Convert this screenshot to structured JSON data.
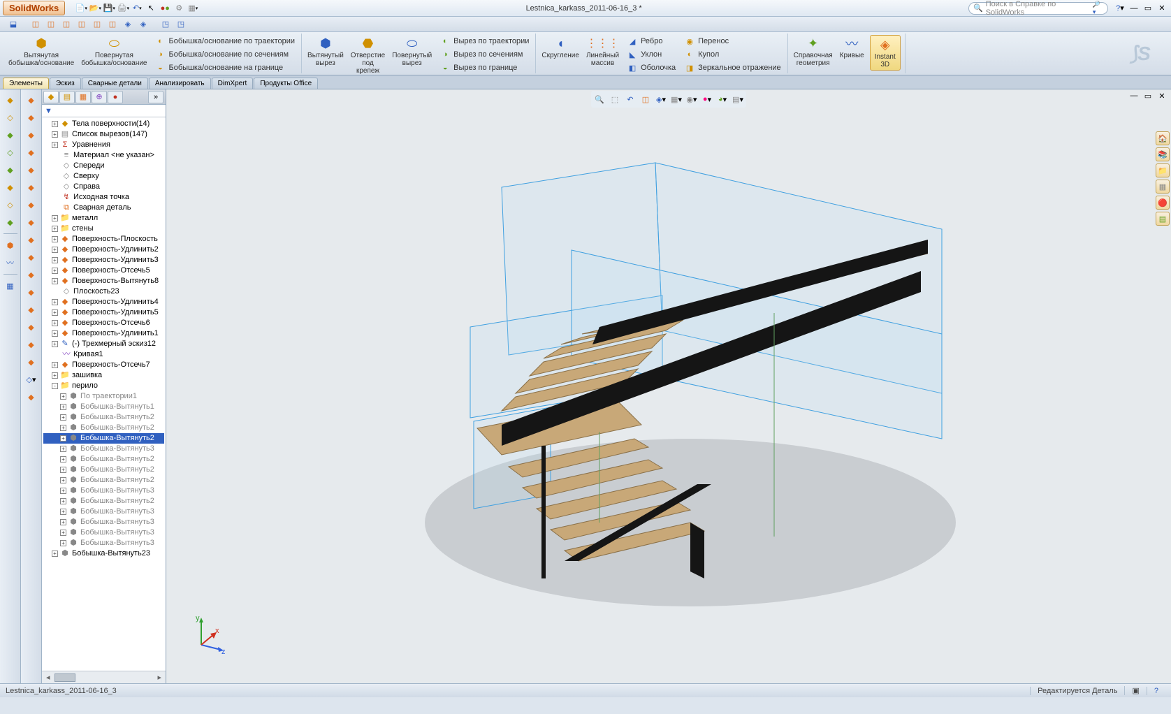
{
  "app": {
    "logo": "SolidWorks",
    "title": "Lestnica_karkass_2011-06-16_3 *",
    "search_placeholder": "Поиск в Справке по SolidWorks"
  },
  "qat": [
    "new",
    "open",
    "save",
    "print",
    "undo",
    "select",
    "rebuild",
    "options",
    "macro"
  ],
  "viewbar_icons": [
    "orient",
    "front",
    "back",
    "left",
    "right",
    "top",
    "bottom",
    "iso",
    "normal",
    "section",
    "hidden",
    "wireframe",
    "shaded",
    "shadow"
  ],
  "ribbon": {
    "g1": {
      "big": [
        {
          "label": "Вытянутая\nбобышка/основание"
        },
        {
          "label": "Повернутая\nбобышка/основание"
        }
      ],
      "small": [
        "Бобышка/основание по траектории",
        "Бобышка/основание по сечениям",
        "Бобышка/основание на границе"
      ]
    },
    "g2": {
      "big": [
        {
          "label": "Вытянутый\nвырез"
        },
        {
          "label": "Отверстие\nпод\nкрепеж"
        },
        {
          "label": "Повернутый\nвырез"
        }
      ],
      "small": [
        "Вырез по траектории",
        "Вырез по сечениям",
        "Вырез по границе"
      ]
    },
    "g3": {
      "big": [
        {
          "label": "Скругление"
        },
        {
          "label": "Линейный\nмассив"
        }
      ],
      "small": [
        "Ребро",
        "Уклон",
        "Оболочка",
        "Перенос",
        "Купол",
        "Зеркальное отражение"
      ]
    },
    "g4": {
      "big": [
        {
          "label": "Справочная\nгеометрия"
        },
        {
          "label": "Кривые"
        },
        {
          "label": "Instant\n3D",
          "instant": true
        }
      ]
    }
  },
  "tabs": [
    "Элементы",
    "Эскиз",
    "Сварные детали",
    "Анализировать",
    "DimXpert",
    "Продукты Office"
  ],
  "active_tab": 0,
  "tree": [
    {
      "lvl": 1,
      "exp": "+",
      "icon": "surf",
      "txt": "Тела поверхности(14)"
    },
    {
      "lvl": 1,
      "exp": "+",
      "icon": "cutlist",
      "txt": "Список вырезов(147)"
    },
    {
      "lvl": 1,
      "exp": "+",
      "icon": "eq",
      "txt": "Уравнения"
    },
    {
      "lvl": 1,
      "exp": "",
      "icon": "mat",
      "txt": "Материал <не указан>"
    },
    {
      "lvl": 1,
      "exp": "",
      "icon": "plane",
      "txt": "Спереди"
    },
    {
      "lvl": 1,
      "exp": "",
      "icon": "plane",
      "txt": "Сверху"
    },
    {
      "lvl": 1,
      "exp": "",
      "icon": "plane",
      "txt": "Справа"
    },
    {
      "lvl": 1,
      "exp": "",
      "icon": "origin",
      "txt": "Исходная точка"
    },
    {
      "lvl": 1,
      "exp": "",
      "icon": "weld",
      "txt": "Сварная деталь"
    },
    {
      "lvl": 1,
      "exp": "+",
      "icon": "folder",
      "txt": "металл"
    },
    {
      "lvl": 1,
      "exp": "+",
      "icon": "folder",
      "txt": "стены"
    },
    {
      "lvl": 1,
      "exp": "+",
      "icon": "surf-f",
      "txt": "Поверхность-Плоскость"
    },
    {
      "lvl": 1,
      "exp": "+",
      "icon": "surf-f",
      "txt": "Поверхность-Удлинить2"
    },
    {
      "lvl": 1,
      "exp": "+",
      "icon": "surf-f",
      "txt": "Поверхность-Удлинить3"
    },
    {
      "lvl": 1,
      "exp": "+",
      "icon": "surf-f",
      "txt": "Поверхность-Отсечь5"
    },
    {
      "lvl": 1,
      "exp": "+",
      "icon": "surf-f",
      "txt": "Поверхность-Вытянуть8"
    },
    {
      "lvl": 1,
      "exp": "",
      "icon": "plane",
      "txt": "Плоскость23"
    },
    {
      "lvl": 1,
      "exp": "+",
      "icon": "surf-f",
      "txt": "Поверхность-Удлинить4"
    },
    {
      "lvl": 1,
      "exp": "+",
      "icon": "surf-f",
      "txt": "Поверхность-Удлинить5"
    },
    {
      "lvl": 1,
      "exp": "+",
      "icon": "surf-f",
      "txt": "Поверхность-Отсечь6"
    },
    {
      "lvl": 1,
      "exp": "+",
      "icon": "surf-f",
      "txt": "Поверхность-Удлинить1"
    },
    {
      "lvl": 1,
      "exp": "+",
      "icon": "sketch3d",
      "txt": "(-) Трехмерный эскиз12"
    },
    {
      "lvl": 1,
      "exp": "",
      "icon": "curve",
      "txt": "Кривая1"
    },
    {
      "lvl": 1,
      "exp": "+",
      "icon": "surf-f",
      "txt": "Поверхность-Отсечь7"
    },
    {
      "lvl": 1,
      "exp": "+",
      "icon": "folder",
      "txt": "зашивка"
    },
    {
      "lvl": 1,
      "exp": "-",
      "icon": "folder",
      "txt": "перило"
    },
    {
      "lvl": 2,
      "exp": "+",
      "icon": "boss",
      "txt": "По траектории1",
      "grey": true
    },
    {
      "lvl": 2,
      "exp": "+",
      "icon": "boss",
      "txt": "Бобышка-Вытянуть1",
      "grey": true
    },
    {
      "lvl": 2,
      "exp": "+",
      "icon": "boss",
      "txt": "Бобышка-Вытянуть2",
      "grey": true
    },
    {
      "lvl": 2,
      "exp": "+",
      "icon": "boss",
      "txt": "Бобышка-Вытянуть2",
      "grey": true
    },
    {
      "lvl": 2,
      "exp": "+",
      "icon": "boss",
      "txt": "Бобышка-Вытянуть2",
      "sel": true
    },
    {
      "lvl": 2,
      "exp": "+",
      "icon": "boss",
      "txt": "Бобышка-Вытянуть3",
      "grey": true
    },
    {
      "lvl": 2,
      "exp": "+",
      "icon": "boss",
      "txt": "Бобышка-Вытянуть2",
      "grey": true
    },
    {
      "lvl": 2,
      "exp": "+",
      "icon": "boss",
      "txt": "Бобышка-Вытянуть2",
      "grey": true
    },
    {
      "lvl": 2,
      "exp": "+",
      "icon": "boss",
      "txt": "Бобышка-Вытянуть2",
      "grey": true
    },
    {
      "lvl": 2,
      "exp": "+",
      "icon": "boss",
      "txt": "Бобышка-Вытянуть3",
      "grey": true
    },
    {
      "lvl": 2,
      "exp": "+",
      "icon": "boss",
      "txt": "Бобышка-Вытянуть2",
      "grey": true
    },
    {
      "lvl": 2,
      "exp": "+",
      "icon": "boss",
      "txt": "Бобышка-Вытянуть3",
      "grey": true
    },
    {
      "lvl": 2,
      "exp": "+",
      "icon": "boss",
      "txt": "Бобышка-Вытянуть3",
      "grey": true
    },
    {
      "lvl": 2,
      "exp": "+",
      "icon": "boss",
      "txt": "Бобышка-Вытянуть3",
      "grey": true
    },
    {
      "lvl": 2,
      "exp": "+",
      "icon": "boss",
      "txt": "Бобышка-Вытянуть3",
      "grey": true
    },
    {
      "lvl": 1,
      "exp": "+",
      "icon": "boss",
      "txt": "Бобышка-Вытянуть23"
    }
  ],
  "status": {
    "left": "Lestnica_karkass_2011-06-16_3",
    "right": "Редактируется Деталь"
  },
  "colors": {
    "bg": "#dde5ee",
    "brand": "#b04000",
    "accent": "#3060c0",
    "stair_wood": "#c8a878",
    "stair_frame": "#202020",
    "guide": "#40a0e0",
    "shadow": "#a8aeb3"
  }
}
